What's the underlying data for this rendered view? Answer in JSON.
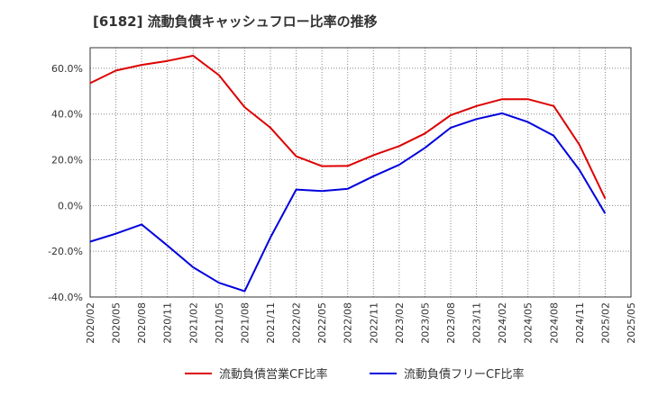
{
  "chart_data": {
    "type": "line",
    "title": "[6182]  流動負債キャッシュフロー比率の推移",
    "x": [
      "2020/02",
      "2020/05",
      "2020/08",
      "2020/11",
      "2021/02",
      "2021/05",
      "2021/08",
      "2021/11",
      "2022/02",
      "2022/05",
      "2022/08",
      "2022/11",
      "2023/02",
      "2023/05",
      "2023/08",
      "2023/11",
      "2024/02",
      "2024/05",
      "2024/08",
      "2024/11",
      "2025/02",
      "2025/05"
    ],
    "y_ticks": [
      "60.0%",
      "40.0%",
      "20.0%",
      "0.0%",
      "-20.0%",
      "-40.0%"
    ],
    "y_tick_values": [
      60,
      40,
      20,
      0,
      -20,
      -40
    ],
    "ylim": [
      -40,
      69
    ],
    "grid": true,
    "legend_position": "bottom",
    "series": [
      {
        "name": "流動負債営業CF比率",
        "color": "#dd0000",
        "values": [
          53.5,
          59,
          61.5,
          63.2,
          65.5,
          57,
          43,
          34,
          21.5,
          17.2,
          17.3,
          22,
          26,
          31.5,
          39.5,
          43.5,
          46.5,
          46.5,
          43.5,
          26.5,
          3,
          null
        ]
      },
      {
        "name": "流動負債フリーCF比率",
        "color": "#0000dd",
        "values": [
          -15.8,
          -12.3,
          -8.3,
          -17.5,
          -27,
          -33.8,
          -37.5,
          -14,
          7,
          6.3,
          7.3,
          12.8,
          17.8,
          25.2,
          34,
          37.8,
          40.3,
          36.5,
          30.5,
          15.5,
          -3.5,
          null
        ]
      }
    ]
  }
}
